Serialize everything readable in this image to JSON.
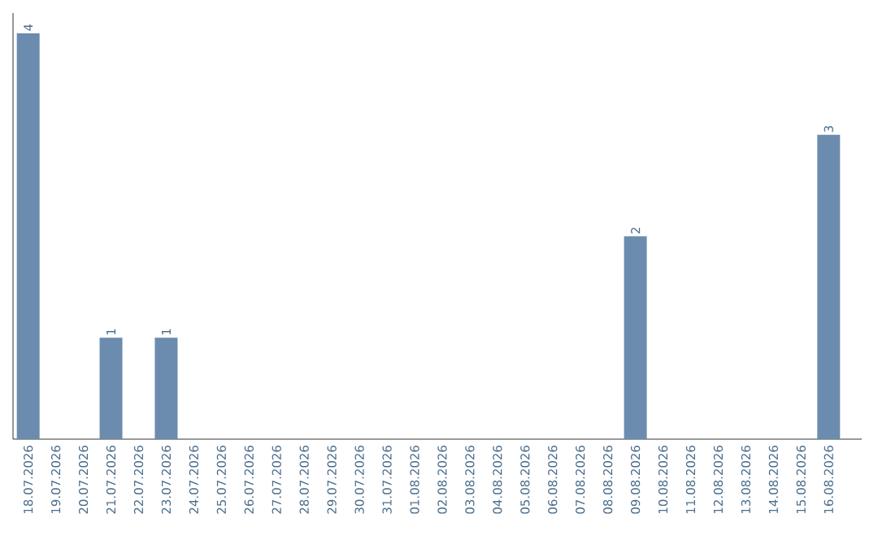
{
  "chart_data": {
    "type": "bar",
    "categories": [
      "18.07.2026",
      "19.07.2026",
      "20.07.2026",
      "21.07.2026",
      "22.07.2026",
      "23.07.2026",
      "24.07.2026",
      "25.07.2026",
      "26.07.2026",
      "27.07.2026",
      "28.07.2026",
      "29.07.2026",
      "30.07.2026",
      "31.07.2026",
      "01.08.2026",
      "02.08.2026",
      "03.08.2026",
      "04.08.2026",
      "05.08.2026",
      "06.08.2026",
      "07.08.2026",
      "08.08.2026",
      "09.08.2026",
      "10.08.2026",
      "11.08.2026",
      "12.08.2026",
      "13.08.2026",
      "14.08.2026",
      "15.08.2026",
      "16.08.2026"
    ],
    "values": [
      4,
      0,
      0,
      1,
      0,
      1,
      0,
      0,
      0,
      0,
      0,
      0,
      0,
      0,
      0,
      0,
      0,
      0,
      0,
      0,
      0,
      0,
      2,
      0,
      0,
      0,
      0,
      0,
      0,
      3
    ],
    "value_labels": [
      "4",
      null,
      null,
      "1",
      null,
      "1",
      null,
      null,
      null,
      null,
      null,
      null,
      null,
      null,
      null,
      null,
      null,
      null,
      null,
      null,
      null,
      null,
      "2",
      null,
      null,
      null,
      null,
      null,
      null,
      "3"
    ],
    "color": "#6b8cae"
  }
}
